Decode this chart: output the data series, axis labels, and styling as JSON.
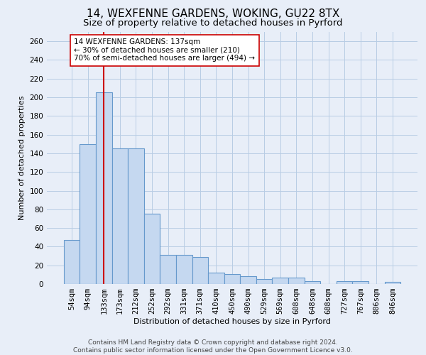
{
  "title_line1_actual": "14, WEXFENNE GARDENS, WOKING, GU22 8TX",
  "subtitle": "Size of property relative to detached houses in Pyrford",
  "xlabel": "Distribution of detached houses by size in Pyrford",
  "ylabel": "Number of detached properties",
  "categories": [
    "54sqm",
    "94sqm",
    "133sqm",
    "173sqm",
    "212sqm",
    "252sqm",
    "292sqm",
    "331sqm",
    "371sqm",
    "410sqm",
    "450sqm",
    "490sqm",
    "529sqm",
    "569sqm",
    "608sqm",
    "648sqm",
    "688sqm",
    "727sqm",
    "767sqm",
    "806sqm",
    "846sqm"
  ],
  "values": [
    47,
    150,
    205,
    145,
    145,
    75,
    31,
    31,
    29,
    12,
    11,
    8,
    5,
    7,
    7,
    3,
    0,
    3,
    3,
    0,
    2
  ],
  "bar_color": "#c5d8f0",
  "bar_edge_color": "#6699cc",
  "background_color": "#e8eef8",
  "red_line_index": 2,
  "red_line_color": "#cc0000",
  "annotation_text": "14 WEXFENNE GARDENS: 137sqm\n← 30% of detached houses are smaller (210)\n70% of semi-detached houses are larger (494) →",
  "annotation_box_color": "white",
  "annotation_box_edge_color": "#cc0000",
  "ylim": [
    0,
    270
  ],
  "yticks": [
    0,
    20,
    40,
    60,
    80,
    100,
    120,
    140,
    160,
    180,
    200,
    220,
    240,
    260
  ],
  "footer_line1": "Contains HM Land Registry data © Crown copyright and database right 2024.",
  "footer_line2": "Contains public sector information licensed under the Open Government Licence v3.0.",
  "grid_color": "#b8cce4",
  "title_fontsize": 11,
  "subtitle_fontsize": 9.5,
  "label_fontsize": 8,
  "tick_fontsize": 7.5,
  "footer_fontsize": 6.5,
  "annotation_fontsize": 7.5
}
